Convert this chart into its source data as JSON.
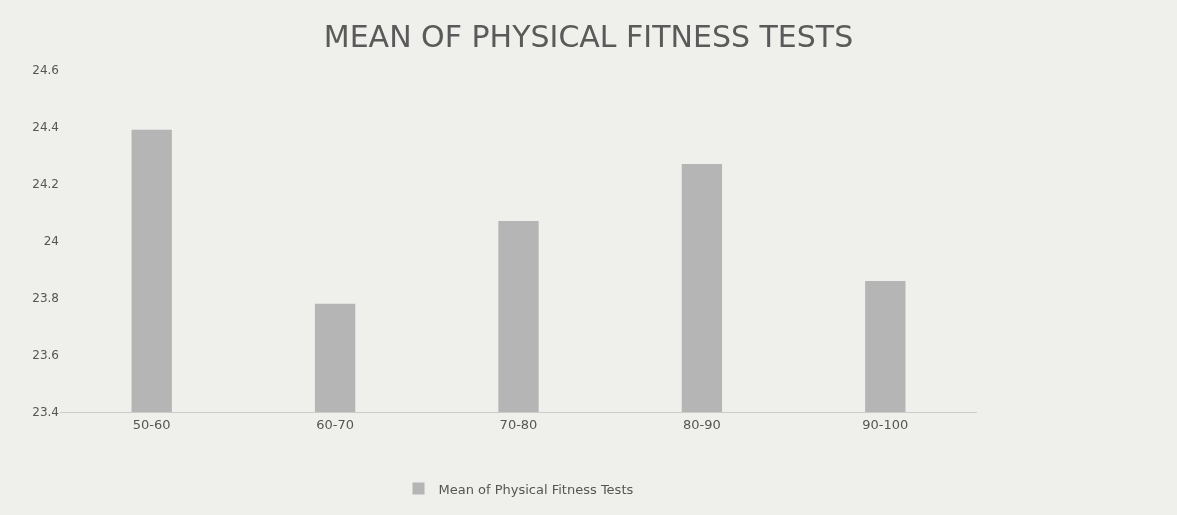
{
  "chart_data": {
    "type": "bar",
    "title": "MEAN OF PHYSICAL FITNESS TESTS",
    "categories": [
      "50-60",
      "60-70",
      "70-80",
      "80-90",
      "90-100"
    ],
    "series": [
      {
        "name": "Mean of Physical Fitness Tests",
        "color": "#b5b5b5",
        "values": [
          24.39,
          23.78,
          24.07,
          24.27,
          23.86
        ]
      }
    ],
    "ylim": [
      23.4,
      24.6
    ],
    "yticks": [
      23.4,
      23.6,
      23.8,
      24,
      24.2,
      24.4,
      24.6
    ],
    "grid": false,
    "legend": "bottom"
  }
}
